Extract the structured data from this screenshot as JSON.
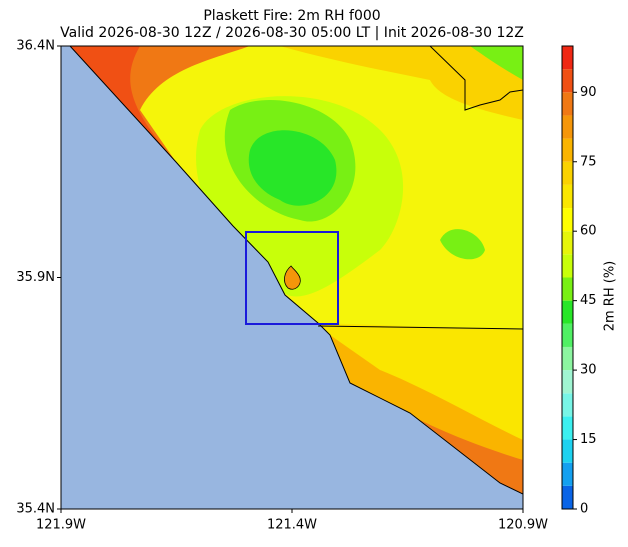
{
  "title": "Plaskett Fire: 2m RH f000",
  "subtitle": "Valid 2026-08-30 12Z / 2026-08-30 05:00 LT | Init 2026-08-30 12Z",
  "lat_ticks": [
    "36.4N",
    "35.9N",
    "35.4N"
  ],
  "lon_ticks": [
    "121.9W",
    "121.4W",
    "120.9W"
  ],
  "colorbar": {
    "label": "2m RH (%)",
    "ylim": [
      0,
      100
    ],
    "yticks": [
      0,
      15,
      30,
      45,
      60,
      75,
      90
    ],
    "levels": [
      0,
      5,
      10,
      15,
      20,
      25,
      30,
      35,
      40,
      45,
      50,
      55,
      60,
      65,
      70,
      75,
      80,
      85,
      90,
      95,
      100
    ],
    "colors": [
      "#0a64e6",
      "#14a0f0",
      "#1ed2f0",
      "#3cf0f0",
      "#78f5e6",
      "#a0f5d2",
      "#8cf5a0",
      "#50f064",
      "#28e628",
      "#78f014",
      "#c8ff0a",
      "#e6f50a",
      "#ffff00",
      "#fae600",
      "#fad200",
      "#fab400",
      "#f5960a",
      "#f07814",
      "#f05014",
      "#f02814"
    ]
  }
}
